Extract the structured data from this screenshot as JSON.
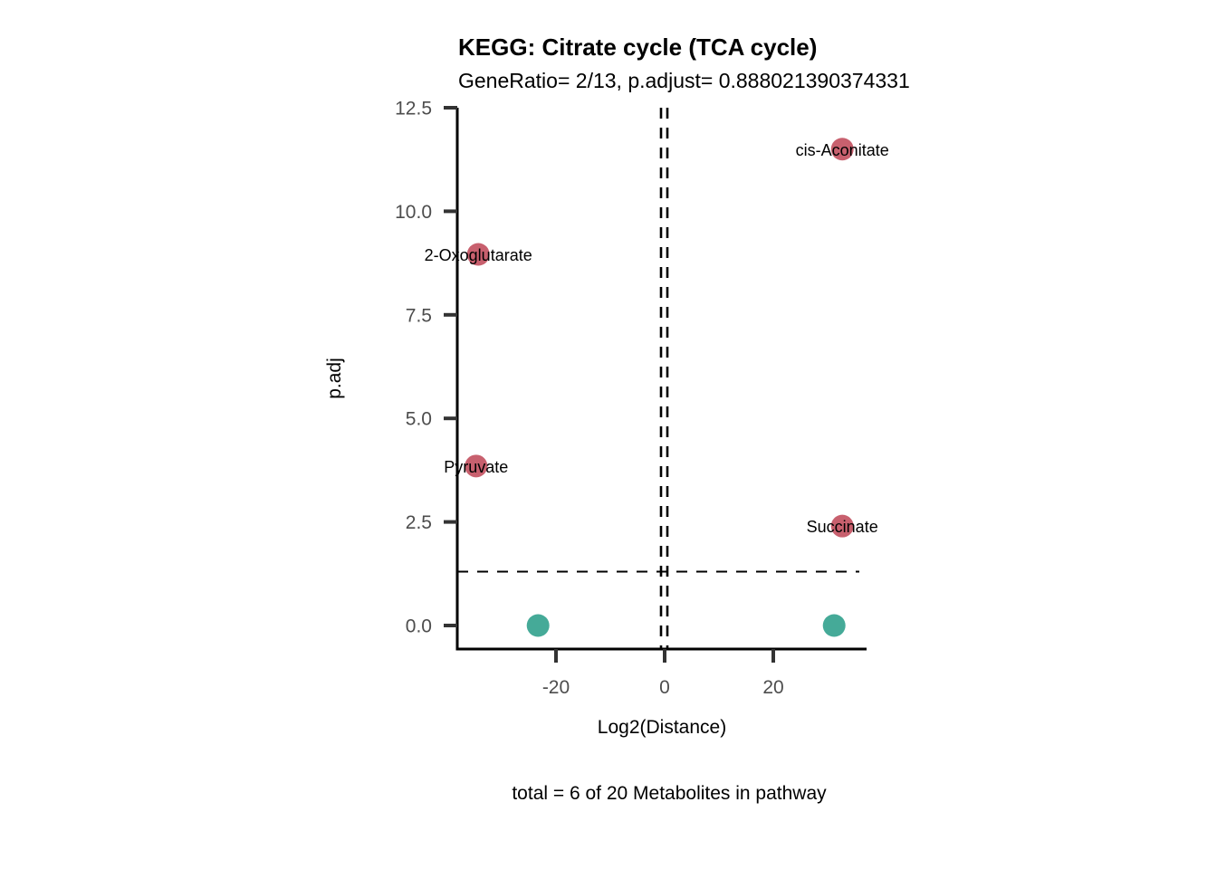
{
  "chart_data": {
    "type": "scatter",
    "title": "KEGG: Citrate cycle (TCA cycle)",
    "subtitle": "GeneRatio= 2/13, p.adjust= 0.888021390374331",
    "xlabel": "Log2(Distance)",
    "ylabel": "p.adj",
    "caption": "total = 6 of 20 Metabolites in pathway",
    "xlim": [
      -38.2,
      37.2
    ],
    "ylim": [
      -0.57,
      12.5
    ],
    "x_ticks": [
      -20,
      0,
      20
    ],
    "x_tick_labels": [
      "-20",
      "0",
      "20"
    ],
    "y_ticks": [
      0,
      2.5,
      5,
      7.5,
      10,
      12.5
    ],
    "y_tick_labels": [
      "0.0",
      "2.5",
      "5.0",
      "7.5",
      "10.0",
      "12.5"
    ],
    "grid": false,
    "reference_lines": {
      "horizontal": [
        1.3
      ],
      "vertical": [
        -0.5,
        0.5
      ],
      "style": "dashed"
    },
    "colors": {
      "significant": "#c8606e",
      "not_significant": "#45aa98"
    },
    "points": [
      {
        "label": "cis-Aconitate",
        "x": 32.7,
        "y": 11.5,
        "group": "significant"
      },
      {
        "label": "2-Oxoglutarate",
        "x": -34.3,
        "y": 8.96,
        "group": "significant"
      },
      {
        "label": "Pyruvate",
        "x": -34.7,
        "y": 3.85,
        "group": "significant"
      },
      {
        "label": "Succinate",
        "x": 32.7,
        "y": 2.4,
        "group": "significant"
      },
      {
        "label": "",
        "x": -23.3,
        "y": 0.0,
        "group": "not_significant"
      },
      {
        "label": "",
        "x": 31.2,
        "y": 0.0,
        "group": "not_significant"
      }
    ]
  }
}
